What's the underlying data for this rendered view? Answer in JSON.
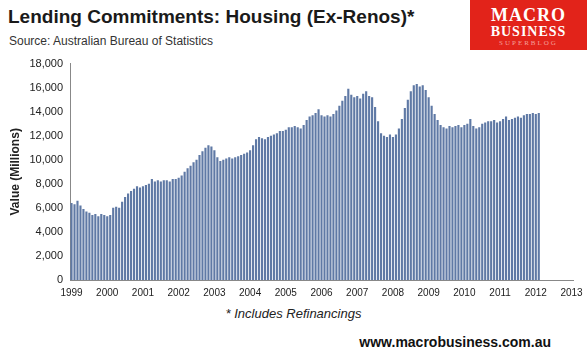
{
  "chart_data": {
    "type": "bar",
    "title": "Lending Commitments: Housing (Ex-Renos)*",
    "subtitle": "Source: Australian Bureau of Statistics",
    "y_label": "Value (Millions)",
    "annotations": [
      "* Includes Refinancings",
      "www.macrobusiness.com.au"
    ],
    "logo": [
      "MACRO",
      "BUSINESS",
      "SUPERBLOG"
    ],
    "color": "#5f79a5",
    "grid": false,
    "ylim": [
      0,
      18000
    ],
    "yticks": [
      0,
      {
        "value": 2000,
        "label": "2,000"
      },
      {
        "value": 4000,
        "label": "4,000"
      },
      {
        "value": 6000,
        "label": "6,000"
      },
      {
        "value": 8000,
        "label": "8,000"
      },
      {
        "value": 10000,
        "label": "10,000"
      },
      {
        "value": 12000,
        "label": "12,000"
      },
      {
        "value": 14000,
        "label": "14,000"
      },
      {
        "value": 16000,
        "label": "16,000"
      },
      {
        "value": 18000,
        "label": "18,000"
      }
    ],
    "categories": [
      "1999",
      null,
      null,
      null,
      null,
      null,
      null,
      null,
      null,
      null,
      null,
      null,
      "2000",
      null,
      null,
      null,
      null,
      null,
      null,
      null,
      null,
      null,
      null,
      null,
      "2001",
      null,
      null,
      null,
      null,
      null,
      null,
      null,
      null,
      null,
      null,
      null,
      "2002",
      null,
      null,
      null,
      null,
      null,
      null,
      null,
      null,
      null,
      null,
      null,
      "2003",
      null,
      null,
      null,
      null,
      null,
      null,
      null,
      null,
      null,
      null,
      null,
      "2004",
      null,
      null,
      null,
      null,
      null,
      null,
      null,
      null,
      null,
      null,
      null,
      "2005",
      null,
      null,
      null,
      null,
      null,
      null,
      null,
      null,
      null,
      null,
      null,
      "2006",
      null,
      null,
      null,
      null,
      null,
      null,
      null,
      null,
      null,
      null,
      null,
      "2007",
      null,
      null,
      null,
      null,
      null,
      null,
      null,
      null,
      null,
      null,
      null,
      "2008",
      null,
      null,
      null,
      null,
      null,
      null,
      null,
      null,
      null,
      null,
      null,
      "2009",
      null,
      null,
      null,
      null,
      null,
      null,
      null,
      null,
      null,
      null,
      null,
      "2010",
      null,
      null,
      null,
      null,
      null,
      null,
      null,
      null,
      null,
      null,
      null,
      "2011",
      null,
      null,
      null,
      null,
      null,
      null,
      null,
      null,
      null,
      null,
      null,
      "2012",
      null,
      null,
      null,
      null,
      null,
      null,
      null,
      null,
      null,
      null,
      null,
      "2013"
    ],
    "values": [
      6400,
      6300,
      6600,
      6200,
      5900,
      5700,
      5600,
      5400,
      5500,
      5300,
      5500,
      5400,
      5300,
      5400,
      6000,
      6100,
      6000,
      6500,
      6900,
      7200,
      7400,
      7600,
      7800,
      7700,
      7800,
      7900,
      8000,
      8400,
      8200,
      8300,
      8200,
      8300,
      8300,
      8200,
      8400,
      8400,
      8500,
      8700,
      9000,
      9300,
      9500,
      9800,
      10000,
      10400,
      10700,
      11000,
      11200,
      11100,
      10800,
      10200,
      9900,
      10000,
      10100,
      10200,
      10100,
      10200,
      10300,
      10400,
      10500,
      10600,
      10800,
      11200,
      11700,
      11900,
      11800,
      11700,
      11900,
      12000,
      12100,
      12200,
      12400,
      12400,
      12500,
      12700,
      12700,
      12800,
      12700,
      12600,
      12900,
      13300,
      13600,
      13700,
      13900,
      14200,
      13700,
      13600,
      13700,
      13600,
      13800,
      14100,
      14500,
      14900,
      15300,
      15900,
      15400,
      15200,
      15300,
      15100,
      15500,
      15700,
      15300,
      15200,
      14400,
      13200,
      12200,
      12000,
      11900,
      12100,
      11900,
      12100,
      12600,
      13400,
      14300,
      15000,
      15700,
      16200,
      16300,
      16100,
      16200,
      15800,
      15200,
      14500,
      13800,
      13300,
      12900,
      12700,
      12600,
      12800,
      12700,
      12800,
      12900,
      12700,
      12900,
      13000,
      13400,
      12800,
      12600,
      12700,
      13000,
      13100,
      13200,
      13200,
      13300,
      13100,
      13200,
      13400,
      13600,
      13300,
      13400,
      13500,
      13600,
      13500,
      13700,
      13800,
      13800,
      13900,
      13800,
      13900,
      null,
      null,
      null,
      null,
      null,
      null,
      null,
      null,
      null,
      null,
      null
    ]
  }
}
